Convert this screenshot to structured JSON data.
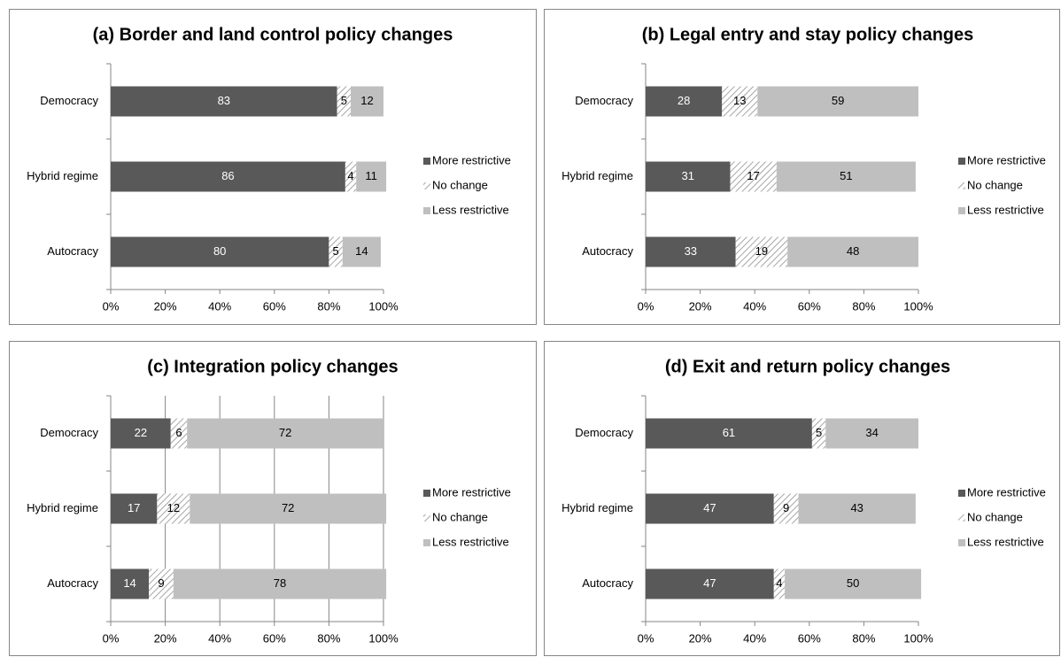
{
  "chart_data": [
    {
      "type": "bar",
      "stacked": true,
      "orientation": "horizontal",
      "title": "(a) Border and land control policy changes",
      "categories": [
        "Democracy",
        "Hybrid regime",
        "Autocracy"
      ],
      "series": [
        {
          "name": "More restrictive",
          "color": "#595959",
          "values": [
            83,
            86,
            80
          ]
        },
        {
          "name": "No change",
          "color": "#a6a6a6",
          "hatch": true,
          "values": [
            5,
            4,
            5
          ]
        },
        {
          "name": "Less restrictive",
          "color": "#bfbfbf",
          "values": [
            12,
            11,
            14
          ]
        }
      ],
      "xlim": [
        0,
        100
      ],
      "xticks": [
        {
          "value": 0,
          "label": "0%"
        },
        {
          "value": 20,
          "label": "20%"
        },
        {
          "value": 40,
          "label": "40%"
        },
        {
          "value": 60,
          "label": "60%"
        },
        {
          "value": 80,
          "label": "80%"
        },
        {
          "value": 100,
          "label": "100%"
        }
      ],
      "grid": false,
      "legend": "right"
    },
    {
      "type": "bar",
      "stacked": true,
      "orientation": "horizontal",
      "title": "(b) Legal entry and stay policy changes",
      "categories": [
        "Democracy",
        "Hybrid regime",
        "Autocracy"
      ],
      "series": [
        {
          "name": "More restrictive",
          "color": "#595959",
          "values": [
            28,
            31,
            33
          ]
        },
        {
          "name": "No change",
          "color": "#a6a6a6",
          "hatch": true,
          "values": [
            13,
            17,
            19
          ]
        },
        {
          "name": "Less restrictive",
          "color": "#bfbfbf",
          "values": [
            59,
            51,
            48
          ]
        }
      ],
      "xlim": [
        0,
        100
      ],
      "xticks": [
        {
          "value": 0,
          "label": "0%"
        },
        {
          "value": 20,
          "label": "20%"
        },
        {
          "value": 40,
          "label": "40%"
        },
        {
          "value": 60,
          "label": "60%"
        },
        {
          "value": 80,
          "label": "80%"
        },
        {
          "value": 100,
          "label": "100%"
        }
      ],
      "grid": false,
      "legend": "right"
    },
    {
      "type": "bar",
      "stacked": true,
      "orientation": "horizontal",
      "title": "(c) Integration policy changes",
      "categories": [
        "Democracy",
        "Hybrid regime",
        "Autocracy"
      ],
      "series": [
        {
          "name": "More restrictive",
          "color": "#595959",
          "values": [
            22,
            17,
            14
          ]
        },
        {
          "name": "No change",
          "color": "#a6a6a6",
          "hatch": true,
          "values": [
            6,
            12,
            9
          ]
        },
        {
          "name": "Less restrictive",
          "color": "#bfbfbf",
          "values": [
            72,
            72,
            78
          ]
        }
      ],
      "xlim": [
        0,
        100
      ],
      "xticks": [
        {
          "value": 0,
          "label": "0%"
        },
        {
          "value": 20,
          "label": "20%"
        },
        {
          "value": 40,
          "label": "40%"
        },
        {
          "value": 60,
          "label": "60%"
        },
        {
          "value": 80,
          "label": "80%"
        },
        {
          "value": 100,
          "label": "100%"
        }
      ],
      "grid": true,
      "legend": "right"
    },
    {
      "type": "bar",
      "stacked": true,
      "orientation": "horizontal",
      "title": "(d) Exit and return policy changes",
      "categories": [
        "Democracy",
        "Hybrid regime",
        "Autocracy"
      ],
      "series": [
        {
          "name": "More restrictive",
          "color": "#595959",
          "values": [
            61,
            47,
            47
          ]
        },
        {
          "name": "No change",
          "color": "#a6a6a6",
          "hatch": true,
          "values": [
            5,
            9,
            4
          ]
        },
        {
          "name": "Less restrictive",
          "color": "#bfbfbf",
          "values": [
            34,
            43,
            50
          ]
        }
      ],
      "xlim": [
        0,
        100
      ],
      "xticks": [
        {
          "value": 0,
          "label": "0%"
        },
        {
          "value": 20,
          "label": "20%"
        },
        {
          "value": 40,
          "label": "40%"
        },
        {
          "value": 60,
          "label": "60%"
        },
        {
          "value": 80,
          "label": "80%"
        },
        {
          "value": 100,
          "label": "100%"
        }
      ],
      "grid": false,
      "legend": "right"
    }
  ]
}
